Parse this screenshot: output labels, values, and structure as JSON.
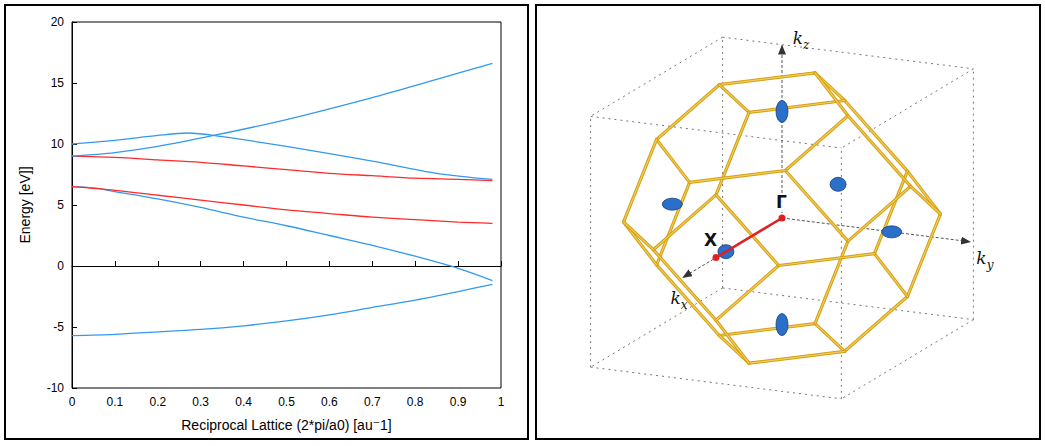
{
  "chart_data": {
    "type": "line",
    "xlabel": "Reciprocal Lattice (2*pi/a0) [au⁻1]",
    "ylabel": "Energy [eV]]",
    "xlim": [
      0,
      1
    ],
    "xticks": [
      0,
      0.1,
      0.2,
      0.3,
      0.4,
      0.5,
      0.6,
      0.7,
      0.8,
      0.9,
      1
    ],
    "ylim": [
      -10,
      20
    ],
    "yticks": [
      -10,
      -5,
      0,
      5,
      10,
      15,
      20
    ],
    "grid": false,
    "series": [
      {
        "color": "#3399ee",
        "x": [
          0,
          0.1,
          0.2,
          0.3,
          0.4,
          0.5,
          0.6,
          0.7,
          0.8,
          0.9,
          0.98
        ],
        "values": [
          -5.7,
          -5.6,
          -5.4,
          -5.2,
          -4.9,
          -4.5,
          -4.0,
          -3.4,
          -2.8,
          -2.1,
          -1.5
        ]
      },
      {
        "color": "#3399ee",
        "x": [
          0,
          0.05,
          0.1,
          0.2,
          0.3,
          0.4,
          0.5,
          0.6,
          0.7,
          0.8,
          0.9,
          0.98
        ],
        "values": [
          6.5,
          6.4,
          6.1,
          5.5,
          4.8,
          4.0,
          3.3,
          2.5,
          1.7,
          0.8,
          -0.2,
          -1.2
        ]
      },
      {
        "color": "#ff2a2a",
        "x": [
          0,
          0.1,
          0.2,
          0.3,
          0.4,
          0.5,
          0.6,
          0.7,
          0.8,
          0.9,
          0.98
        ],
        "values": [
          6.5,
          6.2,
          5.8,
          5.4,
          5.0,
          4.6,
          4.3,
          4.0,
          3.8,
          3.6,
          3.5
        ]
      },
      {
        "color": "#ff2a2a",
        "x": [
          0,
          0.1,
          0.2,
          0.3,
          0.4,
          0.5,
          0.6,
          0.7,
          0.8,
          0.9,
          0.98
        ],
        "values": [
          9.0,
          8.9,
          8.7,
          8.5,
          8.2,
          7.9,
          7.6,
          7.4,
          7.2,
          7.1,
          7.0
        ]
      },
      {
        "color": "#3399ee",
        "x": [
          0,
          0.1,
          0.2,
          0.27,
          0.35,
          0.5,
          0.7,
          0.85,
          0.98
        ],
        "values": [
          10.0,
          10.3,
          10.7,
          10.9,
          10.6,
          9.8,
          8.6,
          7.6,
          7.1
        ]
      },
      {
        "color": "#3399ee",
        "x": [
          0,
          0.1,
          0.2,
          0.33,
          0.5,
          0.7,
          0.85,
          0.98
        ],
        "values": [
          9.0,
          9.3,
          9.8,
          10.7,
          12.0,
          13.8,
          15.3,
          16.6
        ]
      }
    ]
  },
  "diagram": {
    "axis_labels": [
      {
        "text": "k",
        "sub": "z"
      },
      {
        "text": "k",
        "sub": "y"
      },
      {
        "text": "k",
        "sub": "x"
      }
    ],
    "points": [
      "Γ",
      "X"
    ]
  }
}
